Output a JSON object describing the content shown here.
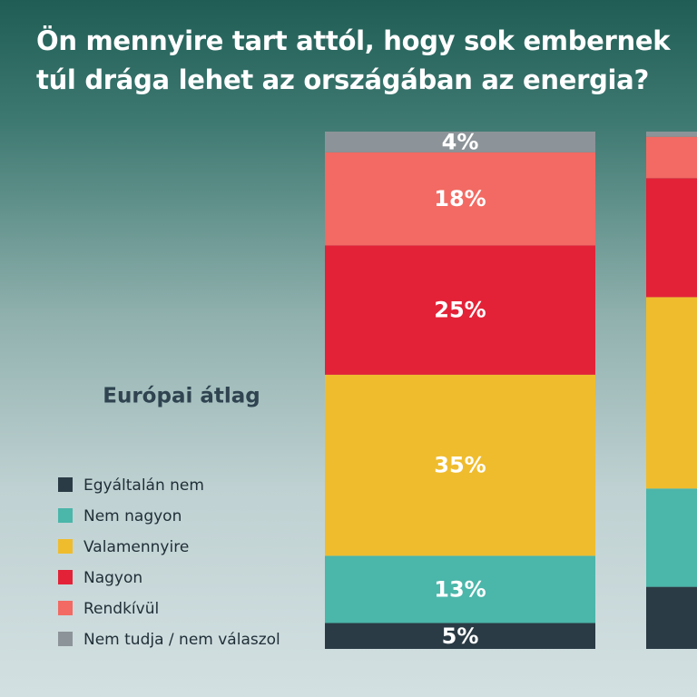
{
  "chart_data": {
    "type": "stacked-bar",
    "title": "Ön mennyire tart attól, hogy sok embernek túl drága lehet az országában az energia?",
    "categories": [
      "Európai átlag",
      null
    ],
    "series": [
      {
        "name": "Egyáltalán nem",
        "color": "#2b3b45",
        "values": [
          5,
          12
        ],
        "value_labels": [
          "5%",
          null
        ]
      },
      {
        "name": "Nem nagyon",
        "color": "#4bb6aa",
        "values": [
          13,
          19
        ],
        "value_labels": [
          "13%",
          null
        ]
      },
      {
        "name": "Valamennyire",
        "color": "#efbc2e",
        "values": [
          35,
          37
        ],
        "value_labels": [
          "35%",
          null
        ]
      },
      {
        "name": "Nagyon",
        "color": "#e32237",
        "values": [
          25,
          23
        ],
        "value_labels": [
          "25%",
          null
        ]
      },
      {
        "name": "Rendkívül",
        "color": "#f26a63",
        "values": [
          18,
          8
        ],
        "value_labels": [
          "18%",
          null
        ]
      },
      {
        "name": "Nem tudja / nem válaszol",
        "color": "#8c9499",
        "values": [
          4,
          1
        ],
        "value_labels": [
          "4%",
          null
        ]
      }
    ],
    "ylim": [
      0,
      100
    ]
  }
}
